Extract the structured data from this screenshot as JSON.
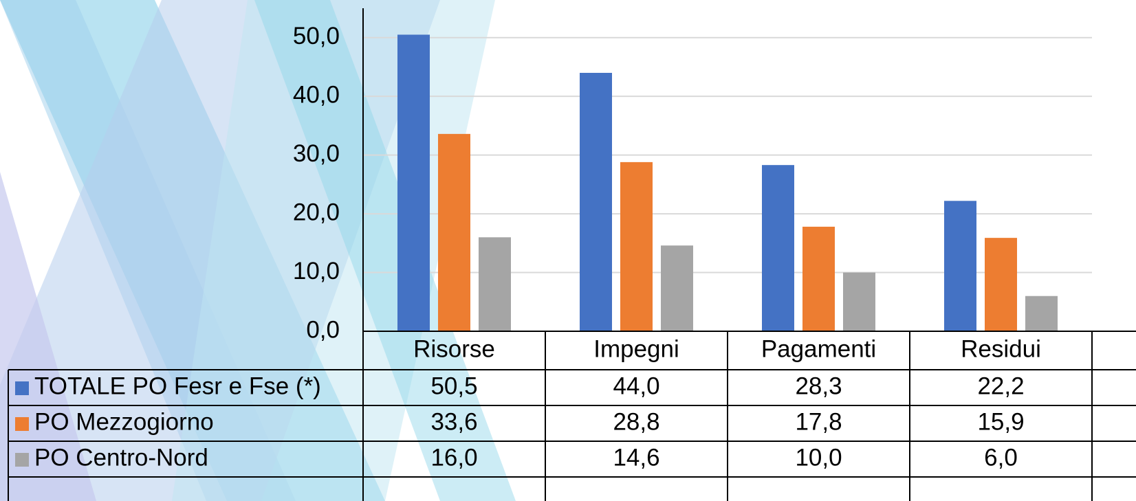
{
  "chart_data": {
    "type": "bar",
    "categories": [
      "Risorse",
      "Impegni",
      "Pagamenti",
      "Residui"
    ],
    "series": [
      {
        "name": "TOTALE PO Fesr e Fse (*)",
        "color": "#4472c4",
        "values": [
          50.5,
          44.0,
          28.3,
          22.2
        ],
        "value_labels": [
          "50,5",
          "44,0",
          "28,3",
          "22,2"
        ]
      },
      {
        "name": "PO Mezzogiorno",
        "color": "#ed7d31",
        "values": [
          33.6,
          28.8,
          17.8,
          15.9
        ],
        "value_labels": [
          "33,6",
          "28,8",
          "17,8",
          "15,9"
        ]
      },
      {
        "name": "PO Centro-Nord",
        "color": "#a5a5a5",
        "values": [
          16.0,
          14.6,
          10.0,
          6.0
        ],
        "value_labels": [
          "16,0",
          "14,6",
          "10,0",
          "6,0"
        ]
      }
    ],
    "ylim": [
      0,
      55
    ],
    "yticks": [
      {
        "value": 0,
        "label": "0,0"
      },
      {
        "value": 10,
        "label": "10,0"
      },
      {
        "value": 20,
        "label": "20,0"
      },
      {
        "value": 30,
        "label": "30,0"
      },
      {
        "value": 40,
        "label": "40,0"
      },
      {
        "value": 50,
        "label": "50,0"
      }
    ],
    "grid": true
  }
}
